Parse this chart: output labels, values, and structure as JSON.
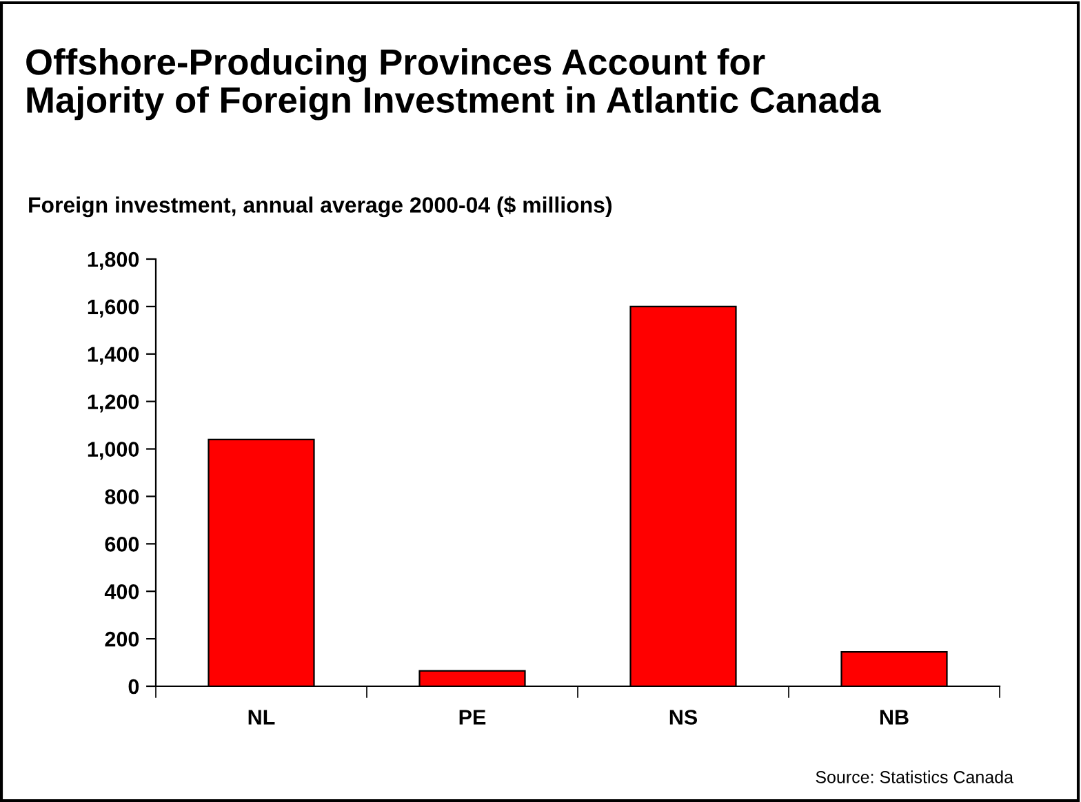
{
  "chart_data": {
    "type": "bar",
    "title": "Offshore-Producing Provinces Account for\nMajority of Foreign Investment in Atlantic Canada",
    "subtitle": "Foreign investment, annual average 2000-04 ($ millions)",
    "categories": [
      "NL",
      "PE",
      "NS",
      "NB"
    ],
    "values": [
      1040,
      65,
      1600,
      145
    ],
    "color": "#ff0000",
    "ylim": [
      0,
      1800
    ],
    "yticks": [
      {
        "value": 0,
        "label": "0"
      },
      {
        "value": 200,
        "label": "200"
      },
      {
        "value": 400,
        "label": "400"
      },
      {
        "value": 600,
        "label": "600"
      },
      {
        "value": 800,
        "label": "800"
      },
      {
        "value": 1000,
        "label": "1,000"
      },
      {
        "value": 1200,
        "label": "1,200"
      },
      {
        "value": 1400,
        "label": "1,400"
      },
      {
        "value": 1600,
        "label": "1,600"
      },
      {
        "value": 1800,
        "label": "1,800"
      }
    ],
    "grid": false,
    "annotations": [
      "Source: Statistics Canada"
    ]
  }
}
